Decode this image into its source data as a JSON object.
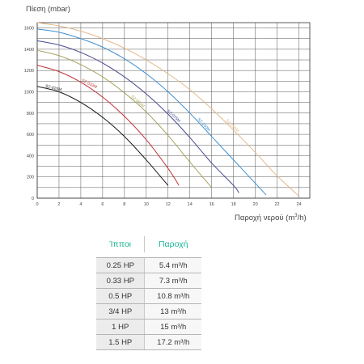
{
  "chart_data": {
    "type": "line",
    "ylabel": "Πίεση (mbar)",
    "xlabel": "Παροχή νερού (m",
    "xlabel_sup": "3",
    "xlabel_end": "/h)",
    "xlim": [
      0,
      25
    ],
    "ylim": [
      0,
      1650
    ],
    "x_ticks": [
      "0",
      "2",
      "4",
      "6",
      "8",
      "10",
      "12",
      "14",
      "16",
      "18",
      "20",
      "22",
      "24"
    ],
    "y_ticks": [
      "0",
      "200",
      "400",
      "600",
      "800",
      "1000",
      "1200",
      "1400",
      "1600"
    ],
    "grid": true,
    "series": [
      {
        "name": "SZ-025M",
        "color": "#1a1a1a",
        "points": [
          [
            0,
            1050
          ],
          [
            2,
            1000
          ],
          [
            4,
            900
          ],
          [
            6,
            760
          ],
          [
            8,
            580
          ],
          [
            10,
            360
          ],
          [
            12,
            120
          ]
        ]
      },
      {
        "name": "SZ-033M",
        "color": "#c0343a",
        "points": [
          [
            0,
            1250
          ],
          [
            2,
            1190
          ],
          [
            4,
            1090
          ],
          [
            6,
            950
          ],
          [
            8,
            770
          ],
          [
            10,
            550
          ],
          [
            12,
            280
          ],
          [
            13,
            120
          ]
        ]
      },
      {
        "name": "SZ-050M",
        "color": "#a7a35e",
        "points": [
          [
            0,
            1390
          ],
          [
            2,
            1340
          ],
          [
            4,
            1255
          ],
          [
            6,
            1140
          ],
          [
            8,
            990
          ],
          [
            10,
            810
          ],
          [
            12,
            590
          ],
          [
            14,
            340
          ],
          [
            16,
            100
          ]
        ]
      },
      {
        "name": "SZ-075M",
        "color": "#474a8e",
        "points": [
          [
            0,
            1480
          ],
          [
            2,
            1440
          ],
          [
            4,
            1370
          ],
          [
            6,
            1270
          ],
          [
            8,
            1140
          ],
          [
            10,
            980
          ],
          [
            12,
            790
          ],
          [
            14,
            570
          ],
          [
            16,
            330
          ],
          [
            18,
            120
          ],
          [
            18.5,
            50
          ]
        ]
      },
      {
        "name": "SZ-100M",
        "color": "#3f8fd1",
        "points": [
          [
            0,
            1590
          ],
          [
            2,
            1560
          ],
          [
            4,
            1500
          ],
          [
            6,
            1420
          ],
          [
            8,
            1310
          ],
          [
            10,
            1170
          ],
          [
            12,
            1000
          ],
          [
            14,
            800
          ],
          [
            16,
            580
          ],
          [
            18,
            360
          ],
          [
            20,
            140
          ],
          [
            21,
            30
          ]
        ]
      },
      {
        "name": "SZ-150M",
        "color": "#e3b98a",
        "points": [
          [
            0,
            1650
          ],
          [
            2,
            1620
          ],
          [
            4,
            1570
          ],
          [
            6,
            1500
          ],
          [
            8,
            1410
          ],
          [
            10,
            1300
          ],
          [
            12,
            1170
          ],
          [
            14,
            1020
          ],
          [
            16,
            840
          ],
          [
            18,
            640
          ],
          [
            20,
            430
          ],
          [
            22,
            210
          ],
          [
            24,
            20
          ]
        ]
      }
    ]
  },
  "table": {
    "header": {
      "col1": "Ίπποι",
      "col2": "Παροχή"
    },
    "rows": [
      {
        "power": "0.25 HP",
        "flow": "5.4 m³/h"
      },
      {
        "power": "0.33 HP",
        "flow": "7.3 m³/h"
      },
      {
        "power": "0.5 HP",
        "flow": "10.8 m³/h"
      },
      {
        "power": "3/4 HP",
        "flow": "13 m³/h"
      },
      {
        "power": "1 HP",
        "flow": "15 m³/h"
      },
      {
        "power": "1.5 HP",
        "flow": "17.2 m³/h"
      }
    ]
  }
}
